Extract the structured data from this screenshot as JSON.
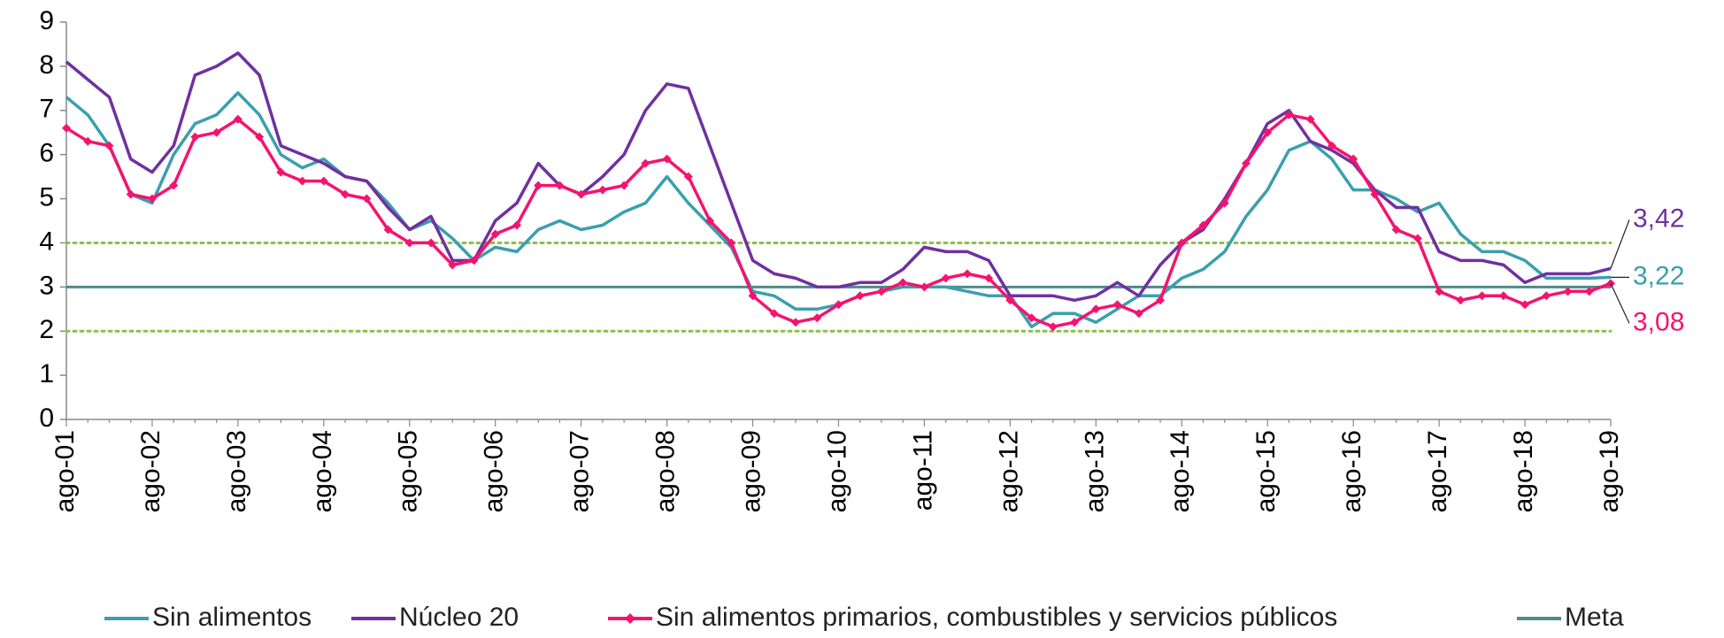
{
  "chart_data": {
    "type": "line",
    "categories": [
      "ago-01",
      null,
      null,
      null,
      "ago-02",
      null,
      null,
      null,
      "ago-03",
      null,
      null,
      null,
      "ago-04",
      null,
      null,
      null,
      "ago-05",
      null,
      null,
      null,
      "ago-06",
      null,
      null,
      null,
      "ago-07",
      null,
      null,
      null,
      "ago-08",
      null,
      null,
      null,
      "ago-09",
      null,
      null,
      null,
      "ago-10",
      null,
      null,
      null,
      "ago-11",
      null,
      null,
      null,
      "ago-12",
      null,
      null,
      null,
      "ago-13",
      null,
      null,
      null,
      "ago-14",
      null,
      null,
      null,
      "ago-15",
      null,
      null,
      null,
      "ago-16",
      null,
      null,
      null,
      "ago-17",
      null,
      null,
      null,
      "ago-18",
      null,
      null,
      null,
      "ago-19"
    ],
    "series": [
      {
        "name": "Sin alimentos",
        "color": "#3a9fae",
        "end_label": "3,22",
        "values": [
          7.3,
          6.9,
          6.2,
          5.1,
          4.9,
          6.0,
          6.7,
          6.9,
          7.4,
          6.9,
          6.0,
          5.7,
          5.9,
          5.5,
          5.4,
          4.9,
          4.3,
          4.5,
          4.1,
          3.6,
          3.9,
          3.8,
          4.3,
          4.5,
          4.3,
          4.4,
          4.7,
          4.9,
          5.5,
          4.9,
          4.4,
          3.9,
          2.9,
          2.8,
          2.5,
          2.5,
          2.6,
          2.8,
          2.9,
          3.0,
          3.0,
          3.0,
          2.9,
          2.8,
          2.8,
          2.1,
          2.4,
          2.4,
          2.2,
          2.5,
          2.8,
          2.8,
          3.2,
          3.4,
          3.8,
          4.6,
          5.2,
          6.1,
          6.3,
          5.9,
          5.2,
          5.2,
          5.0,
          4.7,
          4.9,
          4.2,
          3.8,
          3.8,
          3.6,
          3.2,
          3.2,
          3.2,
          3.22
        ]
      },
      {
        "name": "Núcleo 20",
        "color": "#7030a0",
        "end_label": "3,42",
        "values": [
          8.1,
          7.7,
          7.3,
          5.9,
          5.6,
          6.2,
          7.8,
          8.0,
          8.3,
          7.8,
          6.2,
          6.0,
          5.8,
          5.5,
          5.4,
          4.8,
          4.3,
          4.6,
          3.6,
          3.6,
          4.5,
          4.9,
          5.8,
          5.3,
          5.1,
          5.5,
          6.0,
          7.0,
          7.6,
          7.5,
          6.2,
          4.9,
          3.6,
          3.3,
          3.2,
          3.0,
          3.0,
          3.1,
          3.1,
          3.4,
          3.9,
          3.8,
          3.8,
          3.6,
          2.8,
          2.8,
          2.8,
          2.7,
          2.8,
          3.1,
          2.8,
          3.5,
          4.0,
          4.3,
          5.0,
          5.8,
          6.7,
          7.0,
          6.3,
          6.1,
          5.8,
          5.2,
          4.8,
          4.8,
          3.8,
          3.6,
          3.6,
          3.5,
          3.1,
          3.3,
          3.3,
          3.3,
          3.42
        ]
      },
      {
        "name": "Sin alimentos primarios, combustibles y servicios públicos",
        "color": "#f5136f",
        "marker": "diamond",
        "end_label": "3,08",
        "values": [
          6.6,
          6.3,
          6.2,
          5.1,
          5.0,
          5.3,
          6.4,
          6.5,
          6.8,
          6.4,
          5.6,
          5.4,
          5.4,
          5.1,
          5.0,
          4.3,
          4.0,
          4.0,
          3.5,
          3.6,
          4.2,
          4.4,
          5.3,
          5.3,
          5.1,
          5.2,
          5.3,
          5.8,
          5.9,
          5.5,
          4.5,
          4.0,
          2.8,
          2.4,
          2.2,
          2.3,
          2.6,
          2.8,
          2.9,
          3.1,
          3.0,
          3.2,
          3.3,
          3.2,
          2.7,
          2.3,
          2.1,
          2.2,
          2.5,
          2.6,
          2.4,
          2.7,
          4.0,
          4.4,
          4.9,
          5.8,
          6.5,
          6.9,
          6.8,
          6.2,
          5.9,
          5.1,
          4.3,
          4.1,
          2.9,
          2.7,
          2.8,
          2.8,
          2.6,
          2.8,
          2.9,
          2.9,
          3.08
        ]
      }
    ],
    "reference_lines": [
      {
        "name": "Meta",
        "value": 3,
        "color": "#4e8b8c",
        "style": "solid"
      },
      {
        "value": 2,
        "color": "#8cbf4a",
        "style": "dotted"
      },
      {
        "value": 4,
        "color": "#8cbf4a",
        "style": "dotted"
      }
    ],
    "ylim": [
      0,
      9
    ],
    "yticks": [
      0,
      1,
      2,
      3,
      4,
      5,
      6,
      7,
      8,
      9
    ],
    "grid": false,
    "legend": "bottom"
  }
}
